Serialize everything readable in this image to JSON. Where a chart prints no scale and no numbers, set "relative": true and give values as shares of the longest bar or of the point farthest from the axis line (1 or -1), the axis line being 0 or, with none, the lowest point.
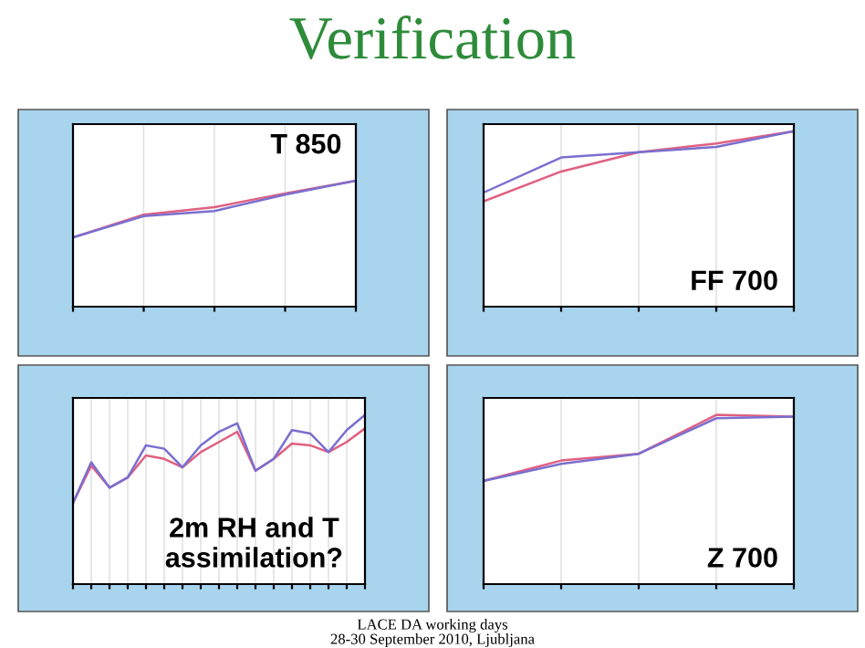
{
  "chart_data": [
    {
      "type": "line",
      "title": "T 850",
      "relative": true,
      "categories": [
        null,
        null,
        null,
        null,
        null
      ],
      "grid": true,
      "legend": false,
      "series": [
        {
          "color": "#e06080",
          "values": [
            0.55,
            0.73,
            0.79,
            0.9,
            1
          ]
        },
        {
          "color": "#7a6fd0",
          "values": [
            0.55,
            0.72,
            0.76,
            0.89,
            1
          ]
        }
      ]
    },
    {
      "type": "line",
      "title": "FF 700",
      "relative": true,
      "categories": [
        null,
        null,
        null,
        null,
        null
      ],
      "grid": true,
      "legend": false,
      "series": [
        {
          "color": "#e06080",
          "values": [
            0.6,
            0.77,
            0.88,
            0.93,
            1
          ]
        },
        {
          "color": "#7a6fd0",
          "values": [
            0.65,
            0.85,
            0.88,
            0.91,
            1
          ]
        }
      ]
    },
    {
      "type": "line",
      "title": "2m RH and T assimilation?",
      "relative": true,
      "categories": [
        null,
        null,
        null,
        null,
        null,
        null,
        null,
        null,
        null,
        null,
        null,
        null,
        null,
        null,
        null,
        null,
        null
      ],
      "grid": true,
      "legend": false,
      "series": [
        {
          "color": "#e06080",
          "values": [
            0.48,
            0.7,
            0.57,
            0.63,
            0.76,
            0.74,
            0.69,
            0.78,
            0.84,
            0.9,
            0.67,
            0.74,
            0.83,
            0.82,
            0.78,
            0.84,
            0.92
          ]
        },
        {
          "color": "#7a6fd0",
          "values": [
            0.48,
            0.72,
            0.57,
            0.63,
            0.82,
            0.8,
            0.69,
            0.82,
            0.9,
            0.95,
            0.67,
            0.74,
            0.91,
            0.89,
            0.78,
            0.91,
            1
          ]
        }
      ]
    },
    {
      "type": "line",
      "title": "Z 700",
      "relative": true,
      "categories": [
        null,
        null,
        null,
        null,
        null
      ],
      "grid": true,
      "legend": false,
      "series": [
        {
          "color": "#e06080",
          "values": [
            0.61,
            0.73,
            0.77,
            1,
            0.99
          ]
        },
        {
          "color": "#7a6fd0",
          "values": [
            0.61,
            0.71,
            0.77,
            0.98,
            0.99
          ]
        }
      ]
    },
    {
      "type": "other",
      "title": "Verification",
      "annotations": [
        "LACE DA working days",
        "28-30 September 2010, Ljubljana"
      ]
    }
  ]
}
